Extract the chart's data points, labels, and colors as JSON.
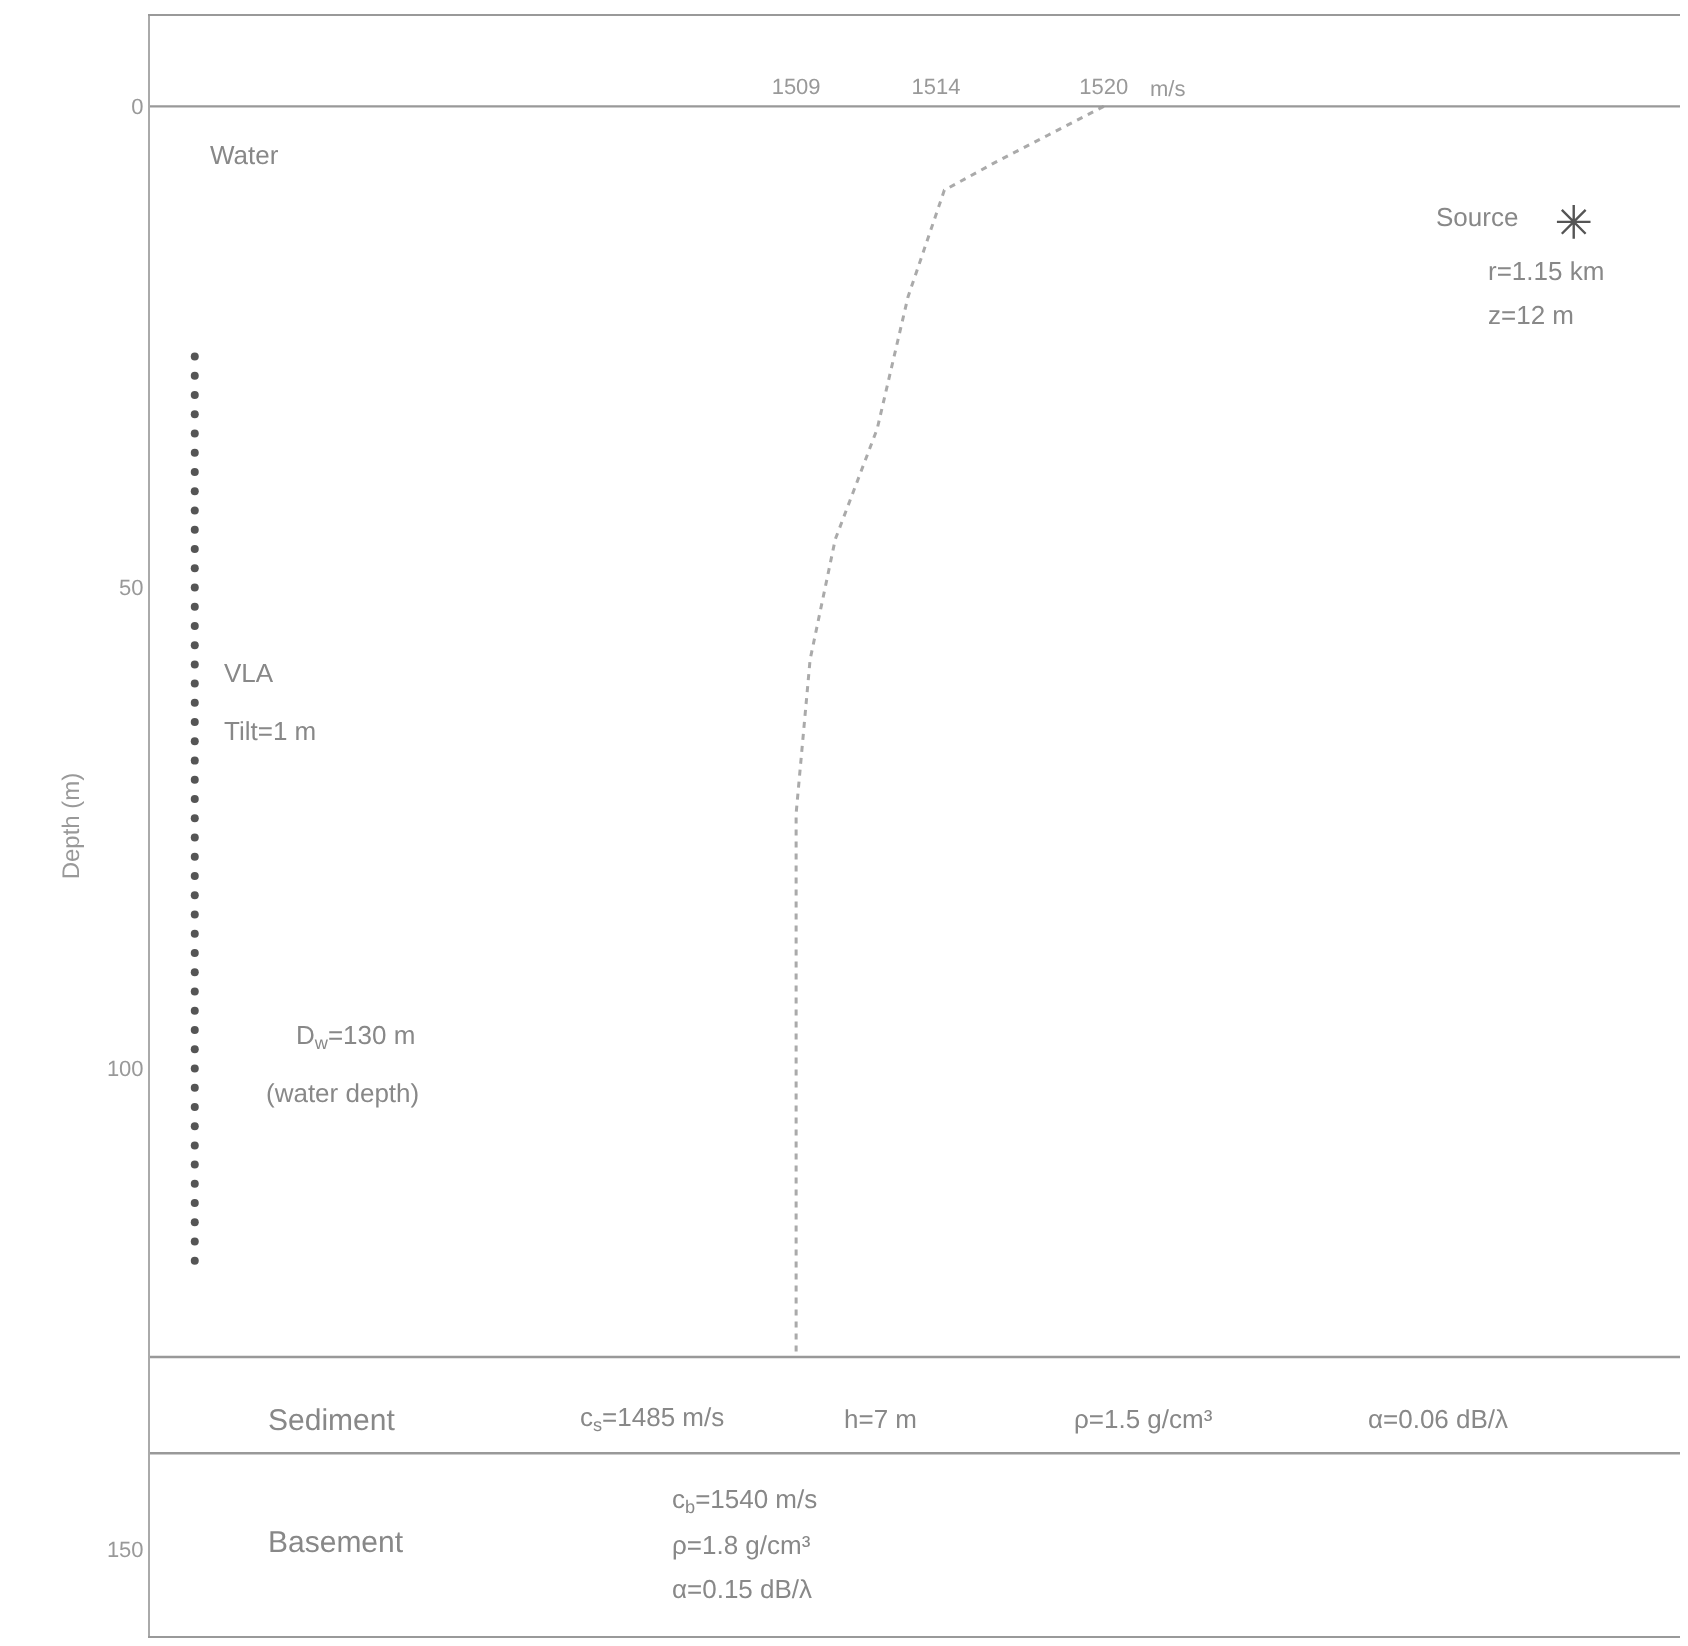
{
  "chart_data": {
    "type": "line",
    "xlabel": "m/s",
    "ylabel": "Depth (m)",
    "xlim": [
      1485.9,
      1540.6
    ],
    "xticks": [
      1509,
      1514,
      1520
    ],
    "ylim": [
      159,
      -9.4
    ],
    "yticks": [
      0,
      50,
      100,
      150
    ],
    "grid": false,
    "line_style": "dotted",
    "series": [
      {
        "color": "#aaaaaa",
        "x": [
          1520,
          1518,
          1516,
          1514.3,
          1513,
          1511.9,
          1510.4,
          1509.5,
          1509,
          1509,
          1509
        ],
        "values": [
          0,
          3,
          6,
          8.7,
          19.8,
          33.5,
          45,
          57.5,
          73.5,
          100,
          130
        ]
      },
      {
        "type": "scatter",
        "marker": "circle",
        "color": "#555555",
        "x": [
          1487.5,
          1487.5,
          1487.5,
          1487.5,
          1487.5,
          1487.5,
          1487.5,
          1487.5,
          1487.5,
          1487.5,
          1487.5,
          1487.5,
          1487.5,
          1487.5,
          1487.5,
          1487.5,
          1487.5,
          1487.5,
          1487.5,
          1487.5,
          1487.5,
          1487.5,
          1487.5,
          1487.5,
          1487.5,
          1487.5,
          1487.5,
          1487.5,
          1487.5,
          1487.5,
          1487.5,
          1487.5,
          1487.5,
          1487.5,
          1487.5,
          1487.5,
          1487.5,
          1487.5,
          1487.5,
          1487.5,
          1487.5,
          1487.5,
          1487.5,
          1487.5,
          1487.5,
          1487.5,
          1487.5,
          1487.5
        ],
        "values": [
          26,
          28,
          30,
          32,
          34,
          36,
          38,
          40,
          42,
          44,
          46,
          48,
          50,
          52,
          54,
          56,
          58,
          60,
          62,
          64,
          66,
          68,
          70,
          72,
          74,
          76,
          78,
          80,
          82,
          84,
          86,
          88,
          90,
          92,
          94,
          96,
          98,
          100,
          102,
          104,
          106,
          108,
          110,
          112,
          114,
          116,
          118,
          120
        ]
      },
      {
        "type": "scatter",
        "marker": "cross",
        "color": "#555555",
        "x": [
          1536.8
        ],
        "values": [
          12
        ]
      }
    ],
    "ref_lines": [
      {
        "axis": "y",
        "value": 0,
        "color": "#999999"
      },
      {
        "axis": "y",
        "value": 130,
        "color": "#999999"
      },
      {
        "axis": "y",
        "value": 140,
        "color": "#999999"
      }
    ],
    "annotations": [
      "Water",
      "Source",
      "r=1.15 km",
      "z=12 m",
      "VLA",
      "Tilt=1 m",
      "D$_{w}$=130 m",
      "(water depth)",
      "Sediment",
      "c$_{s}$=1485 m/s",
      "h=7 m",
      "ρ=1.5 g/cm³",
      "α=0.06 dB/λ",
      "Basement",
      "c$_{b}$=1540 m/s",
      "ρ=1.8 g/cm³",
      "α=0.15 dB/λ"
    ]
  }
}
